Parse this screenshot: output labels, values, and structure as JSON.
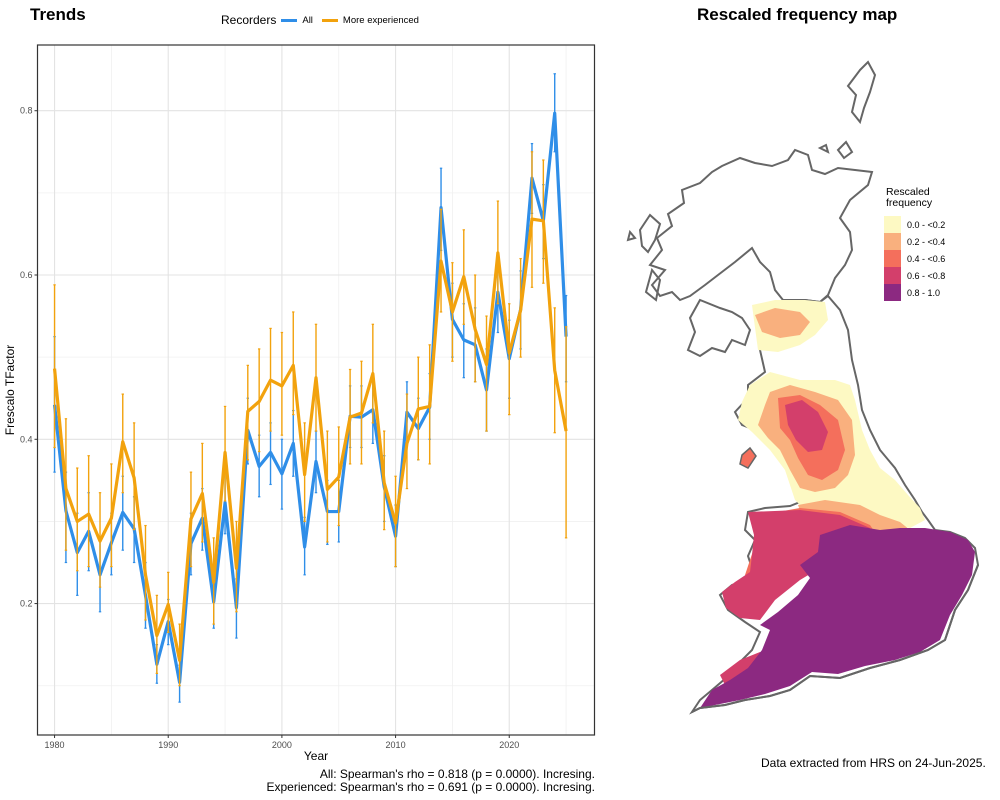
{
  "left_panel": {
    "title": "Trends",
    "legend": {
      "title": "Recorders",
      "items": [
        {
          "label": "All",
          "color": "#2f8ee8"
        },
        {
          "label": "More experienced",
          "color": "#f2a20d"
        }
      ]
    },
    "stats": {
      "all": "All: Spearman's rho = 0.818 (p = 0.0000). Incresing.",
      "experienced": "Experienced: Spearman's rho = 0.691 (p = 0.0000). Incresing."
    }
  },
  "right_panel": {
    "title": "Rescaled frequency map",
    "legend": {
      "title_line1": "Rescaled",
      "title_line2": "frequency",
      "classes": [
        {
          "label": "0.0 - <0.2",
          "color": "#fdf9c3"
        },
        {
          "label": "0.2 - <0.4",
          "color": "#f9b07e"
        },
        {
          "label": "0.4 - <0.6",
          "color": "#f46f5c"
        },
        {
          "label": "0.6 - <0.8",
          "color": "#d33f6b"
        },
        {
          "label": "0.8 - 1.0",
          "color": "#8c2981"
        }
      ]
    },
    "footer": "Data extracted from HRS on 24-Jun-2025."
  },
  "chart_data": {
    "type": "line",
    "title": "",
    "xlabel": "Year",
    "ylabel": "Frescalo TFactor",
    "xlim": [
      1978.5,
      2027.5
    ],
    "ylim": [
      0.04,
      0.88
    ],
    "x_ticks": [
      1980,
      1990,
      2000,
      2010,
      2020
    ],
    "y_ticks": [
      0.2,
      0.4,
      0.6,
      0.8
    ],
    "grid": true,
    "legend_position": "top",
    "x": [
      1980,
      1981,
      1982,
      1983,
      1984,
      1985,
      1986,
      1987,
      1988,
      1989,
      1990,
      1991,
      1992,
      1993,
      1994,
      1995,
      1996,
      1997,
      1998,
      1999,
      2000,
      2001,
      2002,
      2003,
      2004,
      2005,
      2006,
      2007,
      2008,
      2009,
      2010,
      2011,
      2012,
      2013,
      2014,
      2015,
      2016,
      2017,
      2018,
      2019,
      2020,
      2021,
      2022,
      2023,
      2024,
      2025
    ],
    "series": [
      {
        "name": "All",
        "color": "#2f8ee8",
        "values": [
          0.442,
          0.313,
          0.262,
          0.288,
          0.235,
          0.274,
          0.311,
          0.291,
          0.21,
          0.126,
          0.178,
          0.104,
          0.273,
          0.304,
          0.202,
          0.323,
          0.195,
          0.411,
          0.367,
          0.384,
          0.358,
          0.395,
          0.269,
          0.373,
          0.312,
          0.312,
          0.428,
          0.427,
          0.436,
          0.342,
          0.282,
          0.433,
          0.413,
          0.439,
          0.682,
          0.546,
          0.521,
          0.515,
          0.46,
          0.579,
          0.498,
          0.558,
          0.718,
          0.666,
          0.797,
          0.525
        ],
        "upper": [
          0.525,
          0.36,
          0.31,
          0.335,
          0.28,
          0.31,
          0.355,
          0.33,
          0.25,
          0.15,
          0.205,
          0.125,
          0.31,
          0.34,
          0.235,
          0.36,
          0.23,
          0.45,
          0.405,
          0.42,
          0.4,
          0.435,
          0.305,
          0.41,
          0.35,
          0.35,
          0.465,
          0.465,
          0.475,
          0.38,
          0.32,
          0.47,
          0.45,
          0.48,
          0.73,
          0.59,
          0.565,
          0.56,
          0.51,
          0.625,
          0.545,
          0.605,
          0.76,
          0.71,
          0.845,
          0.575
        ],
        "lower": [
          0.36,
          0.25,
          0.21,
          0.24,
          0.19,
          0.235,
          0.265,
          0.25,
          0.17,
          0.103,
          0.15,
          0.08,
          0.235,
          0.265,
          0.17,
          0.285,
          0.158,
          0.37,
          0.33,
          0.345,
          0.315,
          0.355,
          0.235,
          0.335,
          0.272,
          0.275,
          0.39,
          0.39,
          0.395,
          0.3,
          0.245,
          0.395,
          0.375,
          0.4,
          0.63,
          0.5,
          0.475,
          0.47,
          0.41,
          0.53,
          0.45,
          0.51,
          0.675,
          0.62,
          0.75,
          0.47
        ]
      },
      {
        "name": "More experienced",
        "color": "#f2a20d",
        "values": [
          0.486,
          0.34,
          0.3,
          0.309,
          0.276,
          0.304,
          0.397,
          0.353,
          0.235,
          0.161,
          0.199,
          0.131,
          0.303,
          0.334,
          0.226,
          0.384,
          0.243,
          0.434,
          0.446,
          0.472,
          0.465,
          0.49,
          0.357,
          0.475,
          0.339,
          0.354,
          0.427,
          0.432,
          0.48,
          0.347,
          0.298,
          0.395,
          0.437,
          0.44,
          0.617,
          0.555,
          0.598,
          0.534,
          0.491,
          0.627,
          0.505,
          0.557,
          0.668,
          0.666,
          0.484,
          0.41
        ],
        "upper": [
          0.588,
          0.425,
          0.365,
          0.38,
          0.335,
          0.37,
          0.455,
          0.42,
          0.295,
          0.21,
          0.238,
          0.175,
          0.36,
          0.395,
          0.28,
          0.44,
          0.3,
          0.49,
          0.51,
          0.535,
          0.53,
          0.555,
          0.42,
          0.54,
          0.41,
          0.415,
          0.485,
          0.495,
          0.54,
          0.41,
          0.355,
          0.455,
          0.5,
          0.515,
          0.68,
          0.615,
          0.655,
          0.6,
          0.55,
          0.69,
          0.565,
          0.62,
          0.75,
          0.74,
          0.56,
          0.537
        ],
        "lower": [
          0.39,
          0.265,
          0.24,
          0.245,
          0.22,
          0.245,
          0.335,
          0.29,
          0.18,
          0.115,
          0.165,
          0.1,
          0.245,
          0.275,
          0.175,
          0.325,
          0.19,
          0.375,
          0.385,
          0.41,
          0.405,
          0.43,
          0.3,
          0.41,
          0.275,
          0.295,
          0.37,
          0.37,
          0.42,
          0.29,
          0.245,
          0.34,
          0.375,
          0.37,
          0.555,
          0.495,
          0.54,
          0.47,
          0.41,
          0.565,
          0.43,
          0.5,
          0.585,
          0.59,
          0.408,
          0.28
        ]
      }
    ]
  }
}
